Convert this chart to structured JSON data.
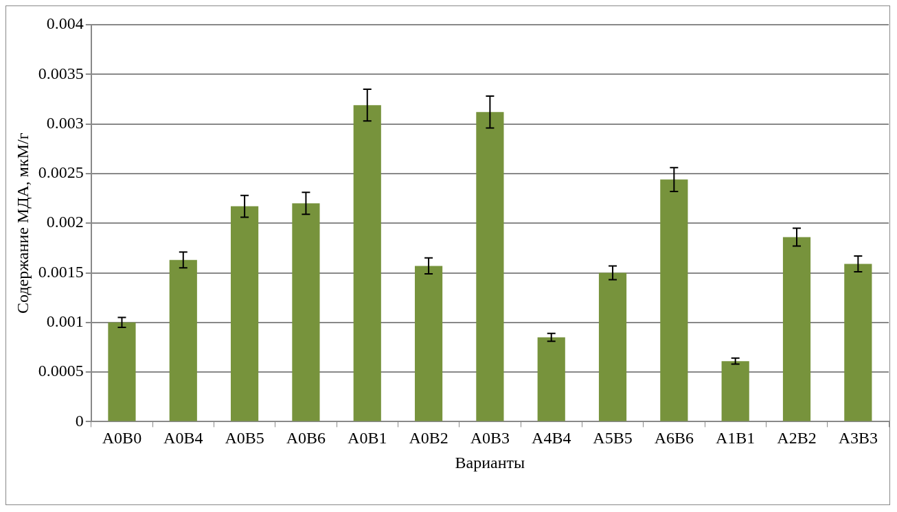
{
  "chart_data": {
    "type": "bar",
    "xlabel": "Варианты",
    "ylabel": "Содержание МДА, мкМ/г",
    "categories": [
      "A0B0",
      "A0B4",
      "A0B5",
      "A0B6",
      "A0B1",
      "A0B2",
      "A0B3",
      "A4B4",
      "A5B5",
      "A6B6",
      "A1B1",
      "A2B2",
      "A3B3"
    ],
    "values": [
      0.001,
      0.00163,
      0.00217,
      0.0022,
      0.00319,
      0.00157,
      0.00312,
      0.00085,
      0.0015,
      0.00244,
      0.00061,
      0.00186,
      0.00159
    ],
    "errors": [
      5e-05,
      8e-05,
      0.00011,
      0.00011,
      0.00016,
      8e-05,
      0.00016,
      4e-05,
      7e-05,
      0.00012,
      3e-05,
      9e-05,
      8e-05
    ],
    "color": "#77933c",
    "ylim": [
      0,
      0.004
    ],
    "yticks": [
      0,
      0.0005,
      0.001,
      0.0015,
      0.002,
      0.0025,
      0.003,
      0.0035,
      0.004
    ],
    "grid": "y",
    "legend": false
  }
}
